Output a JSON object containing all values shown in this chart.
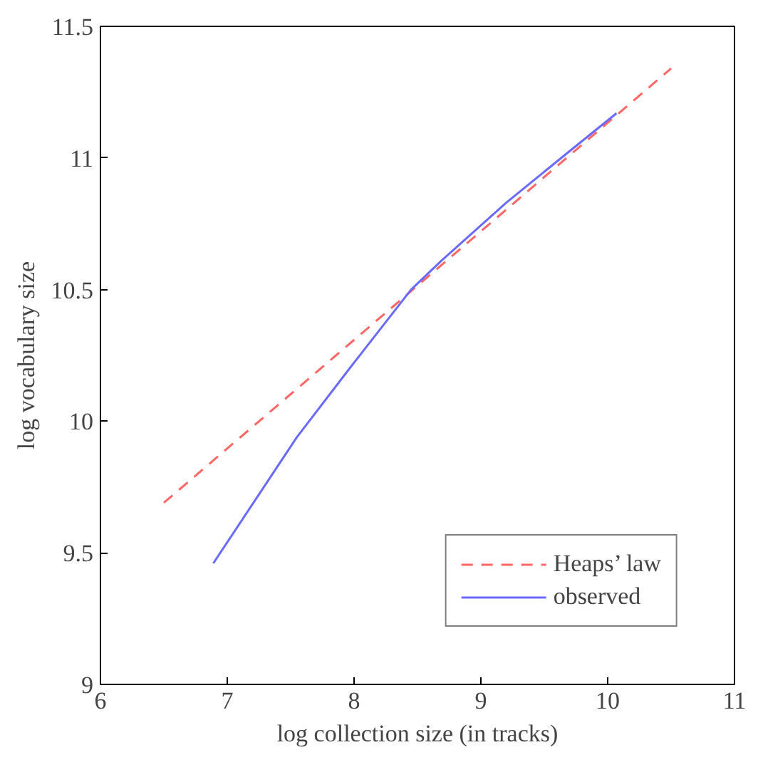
{
  "chart_data": {
    "type": "line",
    "xlabel": "log collection size (in tracks)",
    "ylabel": "log vocabulary size",
    "xlim": [
      6,
      11
    ],
    "ylim": [
      9,
      11.5
    ],
    "xticks": [
      6,
      7,
      8,
      9,
      10,
      11
    ],
    "yticks": [
      9,
      9.5,
      10,
      10.5,
      11,
      11.5
    ],
    "grid": false,
    "legend": "bottom right",
    "series": [
      {
        "name": "Heaps’ law",
        "color": "#ff6666",
        "line_style": "dashed",
        "x": [
          6.5,
          10.5
        ],
        "values": [
          9.69,
          11.34
        ]
      },
      {
        "name": "observed",
        "color": "#6a6aff",
        "line_style": "solid",
        "x": [
          6.89,
          7.55,
          7.98,
          8.45,
          8.69,
          9.2,
          9.71,
          10.07
        ],
        "values": [
          9.46,
          9.94,
          10.21,
          10.5,
          10.61,
          10.83,
          11.03,
          11.17
        ]
      }
    ]
  }
}
